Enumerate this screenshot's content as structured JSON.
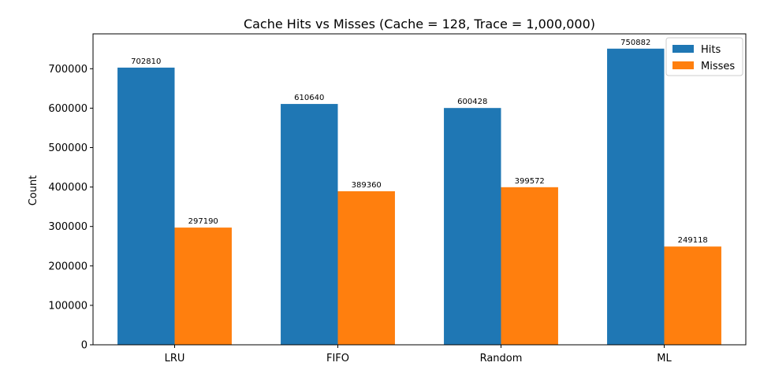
{
  "chart_data": {
    "type": "bar",
    "title": "Cache Hits vs Misses  (Cache = 128, Trace = 1,000,000)",
    "xlabel": "",
    "ylabel": "Count",
    "categories": [
      "LRU",
      "FIFO",
      "Random",
      "ML"
    ],
    "series": [
      {
        "name": "Hits",
        "color": "#1f77b4",
        "values": [
          702810,
          610640,
          600428,
          750882
        ]
      },
      {
        "name": "Misses",
        "color": "#ff7f0e",
        "values": [
          297190,
          389360,
          399572,
          249118
        ]
      }
    ],
    "ylim": [
      0,
      788426
    ],
    "yticks": [
      0,
      100000,
      200000,
      300000,
      400000,
      500000,
      600000,
      700000
    ],
    "grid": false,
    "legend_position": "top-right",
    "data_labels": true
  }
}
